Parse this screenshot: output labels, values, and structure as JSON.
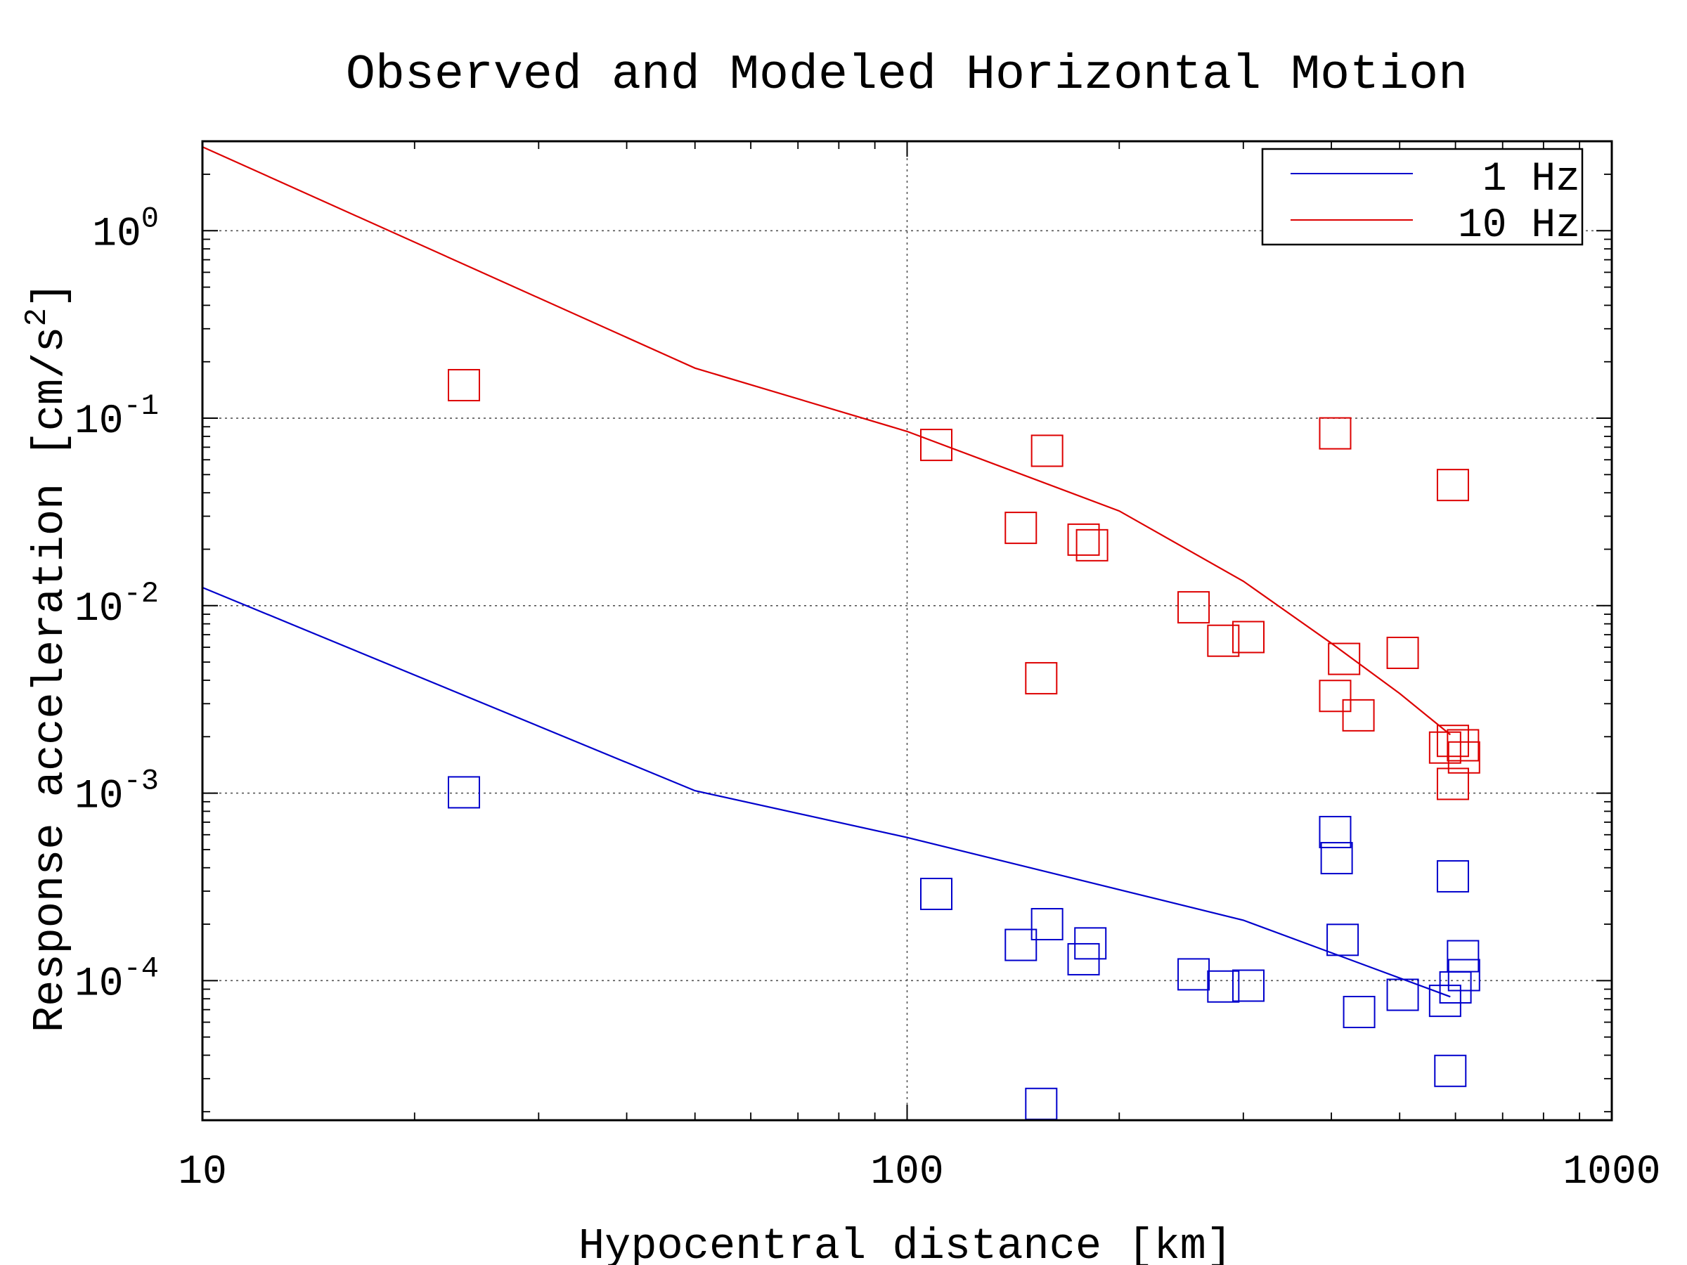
{
  "chart_data": {
    "type": "scatter",
    "title": "Observed and Modeled Horizontal Motion",
    "xlabel": "Hypocentral distance [km]",
    "ylabel": "Response acceleration [cm/s",
    "ylabel_superscript": "2",
    "ylabel_close": "]",
    "x_scale": "log",
    "y_scale": "log",
    "xlim": [
      10,
      1000
    ],
    "ylim": [
      1.8e-05,
      3.0
    ],
    "x_ticks": [
      {
        "value": 10,
        "label": "10"
      },
      {
        "value": 100,
        "label": "100"
      },
      {
        "value": 1000,
        "label": "1000"
      }
    ],
    "y_ticks": [
      {
        "value": 1,
        "base": "10",
        "exp": "0"
      },
      {
        "value": 0.1,
        "base": "10",
        "exp": "-1"
      },
      {
        "value": 0.01,
        "base": "10",
        "exp": "-2"
      },
      {
        "value": 0.001,
        "base": "10",
        "exp": "-3"
      },
      {
        "value": 0.0001,
        "base": "10",
        "exp": "-4"
      }
    ],
    "grid": true,
    "legend_position": "top-right",
    "series": [
      {
        "name": "1 Hz",
        "color": "#0000cc",
        "model_x": [
          10,
          50,
          100,
          300,
          590
        ],
        "model_y": [
          0.0125,
          0.00103,
          0.00058,
          0.00021,
          8.2e-05
        ],
        "observed": [
          [
            23.5,
            0.00101
          ],
          [
            110,
            0.00029
          ],
          [
            145,
            0.000155
          ],
          [
            158,
            0.0002
          ],
          [
            155,
            2.2e-05
          ],
          [
            178,
            0.00013
          ],
          [
            182,
            0.000158
          ],
          [
            255,
            0.000108
          ],
          [
            281,
            9.3e-05
          ],
          [
            305,
            9.4e-05
          ],
          [
            405,
            0.00062
          ],
          [
            407,
            0.00045
          ],
          [
            415,
            0.000165
          ],
          [
            438,
            6.8e-05
          ],
          [
            505,
            8.4e-05
          ],
          [
            580,
            7.8e-05
          ],
          [
            595,
            0.00036
          ],
          [
            590,
            3.3e-05
          ],
          [
            600,
            9.2e-05
          ],
          [
            615,
            0.000135
          ],
          [
            617,
            0.000107
          ]
        ]
      },
      {
        "name": "10 Hz",
        "color": "#dd0000",
        "model_x": [
          10,
          50,
          100,
          200,
          300,
          400,
          500,
          590
        ],
        "model_y": [
          2.8,
          0.185,
          0.085,
          0.032,
          0.0135,
          0.0063,
          0.0034,
          0.00205
        ],
        "observed": [
          [
            23.5,
            0.15
          ],
          [
            110,
            0.072
          ],
          [
            158,
            0.067
          ],
          [
            145,
            0.026
          ],
          [
            155,
            0.0041
          ],
          [
            178,
            0.0225
          ],
          [
            183,
            0.021
          ],
          [
            255,
            0.0098
          ],
          [
            281,
            0.0065
          ],
          [
            305,
            0.0068
          ],
          [
            405,
            0.083
          ],
          [
            405,
            0.0033
          ],
          [
            417,
            0.0052
          ],
          [
            437,
            0.0026
          ],
          [
            505,
            0.0056
          ],
          [
            595,
            0.044
          ],
          [
            580,
            0.00175
          ],
          [
            595,
            0.0019
          ],
          [
            615,
            0.0018
          ],
          [
            617,
            0.00155
          ],
          [
            595,
            0.00112
          ]
        ]
      }
    ]
  }
}
